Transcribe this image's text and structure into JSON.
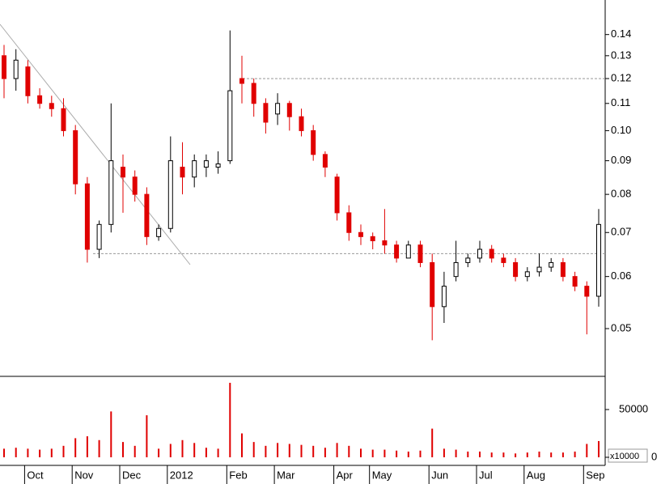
{
  "chart_data": {
    "type": "candlestick",
    "categories": [
      null,
      null,
      "Oct",
      null,
      null,
      null,
      "Nov",
      null,
      null,
      null,
      "Dec",
      null,
      null,
      null,
      "2012",
      null,
      null,
      null,
      null,
      "Feb",
      null,
      null,
      null,
      "Mar",
      null,
      null,
      null,
      null,
      "Apr",
      null,
      null,
      "May",
      null,
      null,
      null,
      null,
      "Jun",
      null,
      null,
      null,
      "Jul",
      null,
      null,
      null,
      "Aug",
      null,
      null,
      null,
      null,
      "Sep",
      null
    ],
    "open": [
      0.13,
      0.12,
      0.125,
      0.113,
      0.11,
      0.108,
      0.1,
      0.083,
      0.066,
      0.072,
      0.088,
      0.085,
      0.08,
      0.069,
      0.071,
      0.088,
      0.085,
      0.088,
      0.088,
      0.09,
      0.12,
      0.118,
      0.11,
      0.106,
      0.11,
      0.105,
      0.1,
      0.092,
      0.085,
      0.075,
      0.07,
      0.069,
      0.068,
      0.067,
      0.064,
      0.067,
      0.063,
      0.054,
      0.06,
      0.063,
      0.064,
      0.066,
      0.064,
      0.063,
      0.06,
      0.061,
      0.062,
      0.063,
      0.06,
      0.058,
      0.056
    ],
    "high": [
      0.135,
      0.133,
      0.128,
      0.116,
      0.113,
      0.112,
      0.102,
      0.085,
      0.073,
      0.11,
      0.092,
      0.087,
      0.082,
      0.072,
      0.098,
      0.096,
      0.092,
      0.092,
      0.093,
      0.142,
      0.13,
      0.12,
      0.112,
      0.114,
      0.111,
      0.108,
      0.102,
      0.093,
      0.086,
      0.077,
      0.072,
      0.07,
      0.076,
      0.068,
      0.068,
      0.068,
      0.065,
      0.061,
      0.068,
      0.065,
      0.068,
      0.067,
      0.065,
      0.064,
      0.062,
      0.065,
      0.064,
      0.064,
      0.061,
      0.059,
      0.076
    ],
    "low": [
      0.112,
      0.115,
      0.11,
      0.108,
      0.105,
      0.098,
      0.08,
      0.063,
      0.064,
      0.07,
      0.075,
      0.078,
      0.067,
      0.068,
      0.07,
      0.08,
      0.082,
      0.085,
      0.086,
      0.089,
      0.11,
      0.105,
      0.099,
      0.102,
      0.1,
      0.098,
      0.09,
      0.085,
      0.073,
      0.068,
      0.067,
      0.066,
      0.065,
      0.063,
      0.064,
      0.062,
      0.048,
      0.051,
      0.059,
      0.062,
      0.063,
      0.063,
      0.062,
      0.059,
      0.059,
      0.06,
      0.061,
      0.059,
      0.057,
      0.049,
      0.054
    ],
    "close": [
      0.12,
      0.128,
      0.113,
      0.11,
      0.108,
      0.1,
      0.083,
      0.066,
      0.072,
      0.09,
      0.085,
      0.08,
      0.069,
      0.071,
      0.09,
      0.085,
      0.09,
      0.09,
      0.089,
      0.115,
      0.118,
      0.11,
      0.103,
      0.11,
      0.105,
      0.1,
      0.092,
      0.088,
      0.075,
      0.07,
      0.069,
      0.068,
      0.067,
      0.064,
      0.067,
      0.063,
      0.054,
      0.058,
      0.063,
      0.064,
      0.066,
      0.064,
      0.063,
      0.06,
      0.061,
      0.062,
      0.063,
      0.06,
      0.058,
      0.056,
      0.072
    ],
    "volume": [
      9000,
      10000,
      9000,
      8000,
      9000,
      12000,
      20000,
      22000,
      18000,
      48000,
      16000,
      12000,
      44000,
      9000,
      14000,
      18000,
      15000,
      10000,
      9000,
      78000,
      25000,
      16000,
      12000,
      15000,
      14000,
      13000,
      12000,
      10000,
      15000,
      12000,
      9000,
      8000,
      8000,
      7000,
      6000,
      7000,
      30000,
      9000,
      8000,
      6000,
      6000,
      5000,
      5000,
      4000,
      5000,
      6000,
      5000,
      5000,
      6000,
      14000,
      17000
    ],
    "up_color": "#000000",
    "down_color": "#e00000",
    "volume_color": "#e00000",
    "log_scale": true,
    "ylim": [
      0.0423,
      0.158
    ],
    "yticks": [
      0.05,
      0.06,
      0.07,
      0.08,
      0.09,
      {
        "value": 0.1,
        "label": "0.10"
      },
      0.11,
      0.12,
      0.13,
      0.14
    ],
    "volume_lim": [
      0,
      84746
    ],
    "volume_ticks": [
      0,
      50000
    ],
    "volume_unit_label": "x10000",
    "reference_lines": [
      0.12,
      0.065
    ]
  }
}
